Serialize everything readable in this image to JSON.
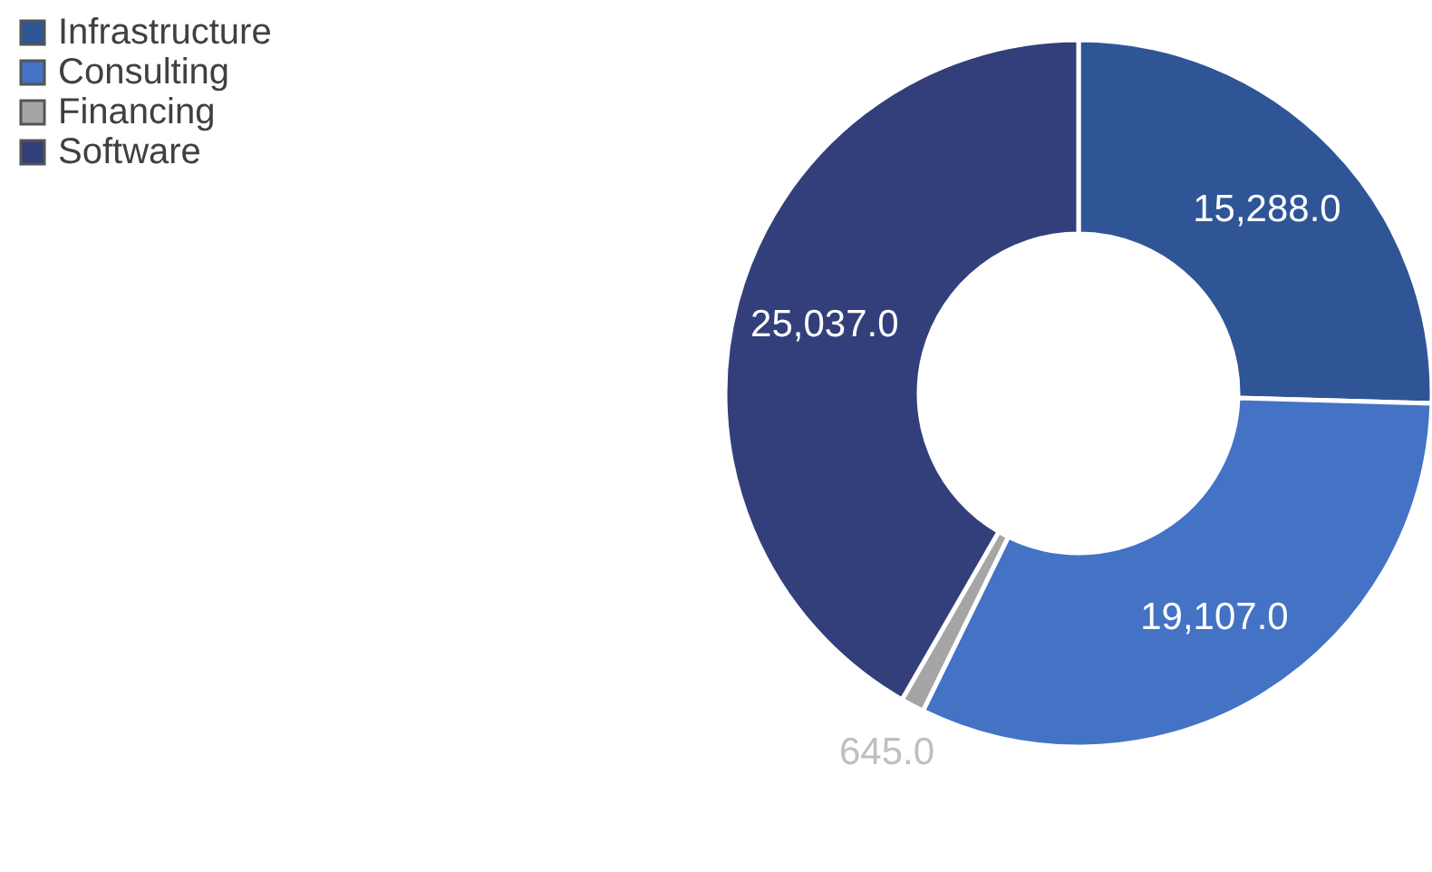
{
  "chart_data": {
    "type": "donut",
    "categories": [
      "Infrastructure",
      "Consulting",
      "Financing",
      "Software"
    ],
    "values": [
      15288.0,
      19107.0,
      645.0,
      25037.0
    ],
    "colors": [
      "#2f5597",
      "#4472c4",
      "#a5a5a5",
      "#333f7a"
    ],
    "value_labels": [
      "15,288.0",
      "19,107.0",
      "645.0",
      "25,037.0"
    ],
    "legend": "top left"
  }
}
